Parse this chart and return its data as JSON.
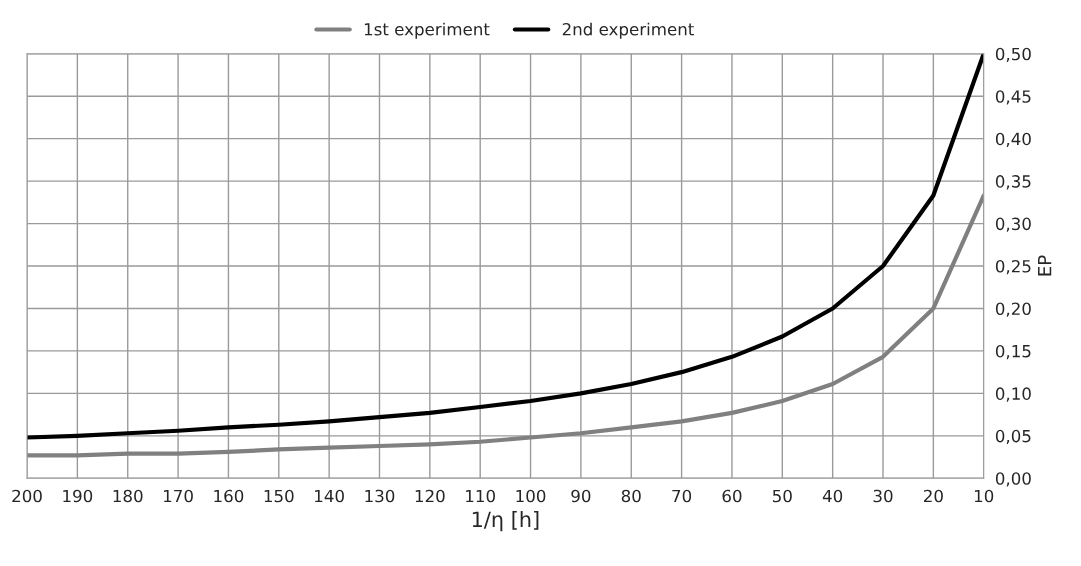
{
  "chart_data": {
    "type": "line",
    "xlabel": "1/η [h]",
    "ylabel": "EP",
    "categories": [
      "200",
      "190",
      "180",
      "170",
      "160",
      "150",
      "140",
      "130",
      "120",
      "110",
      "100",
      "90",
      "80",
      "70",
      "60",
      "50",
      "40",
      "30",
      "20",
      "10"
    ],
    "series": [
      {
        "name": "1st experiment",
        "color": "#808080",
        "values": [
          0.027,
          0.027,
          0.029,
          0.029,
          0.031,
          0.034,
          0.036,
          0.038,
          0.04,
          0.043,
          0.048,
          0.053,
          0.06,
          0.067,
          0.077,
          0.091,
          0.111,
          0.143,
          0.2,
          0.333
        ]
      },
      {
        "name": "2nd experiment",
        "color": "#000000",
        "values": [
          0.048,
          0.05,
          0.053,
          0.056,
          0.06,
          0.063,
          0.067,
          0.072,
          0.077,
          0.084,
          0.091,
          0.1,
          0.111,
          0.125,
          0.143,
          0.167,
          0.2,
          0.25,
          0.333,
          0.5
        ]
      }
    ],
    "ylim": [
      0,
      0.5
    ],
    "yticks": [
      {
        "value": 0,
        "label": "0,00"
      },
      {
        "value": 0.05,
        "label": "0,05"
      },
      {
        "value": 0.1,
        "label": "0,10"
      },
      {
        "value": 0.15,
        "label": "0,15"
      },
      {
        "value": 0.2,
        "label": "0,20"
      },
      {
        "value": 0.25,
        "label": "0,25"
      },
      {
        "value": 0.3,
        "label": "0,30"
      },
      {
        "value": 0.35,
        "label": "0,35"
      },
      {
        "value": 0.4,
        "label": "0,40"
      },
      {
        "value": 0.45,
        "label": "0,45"
      },
      {
        "value": 0.5,
        "label": "0,50"
      }
    ],
    "grid": true,
    "legend": "top",
    "marker": "none",
    "line_style": "solid"
  }
}
